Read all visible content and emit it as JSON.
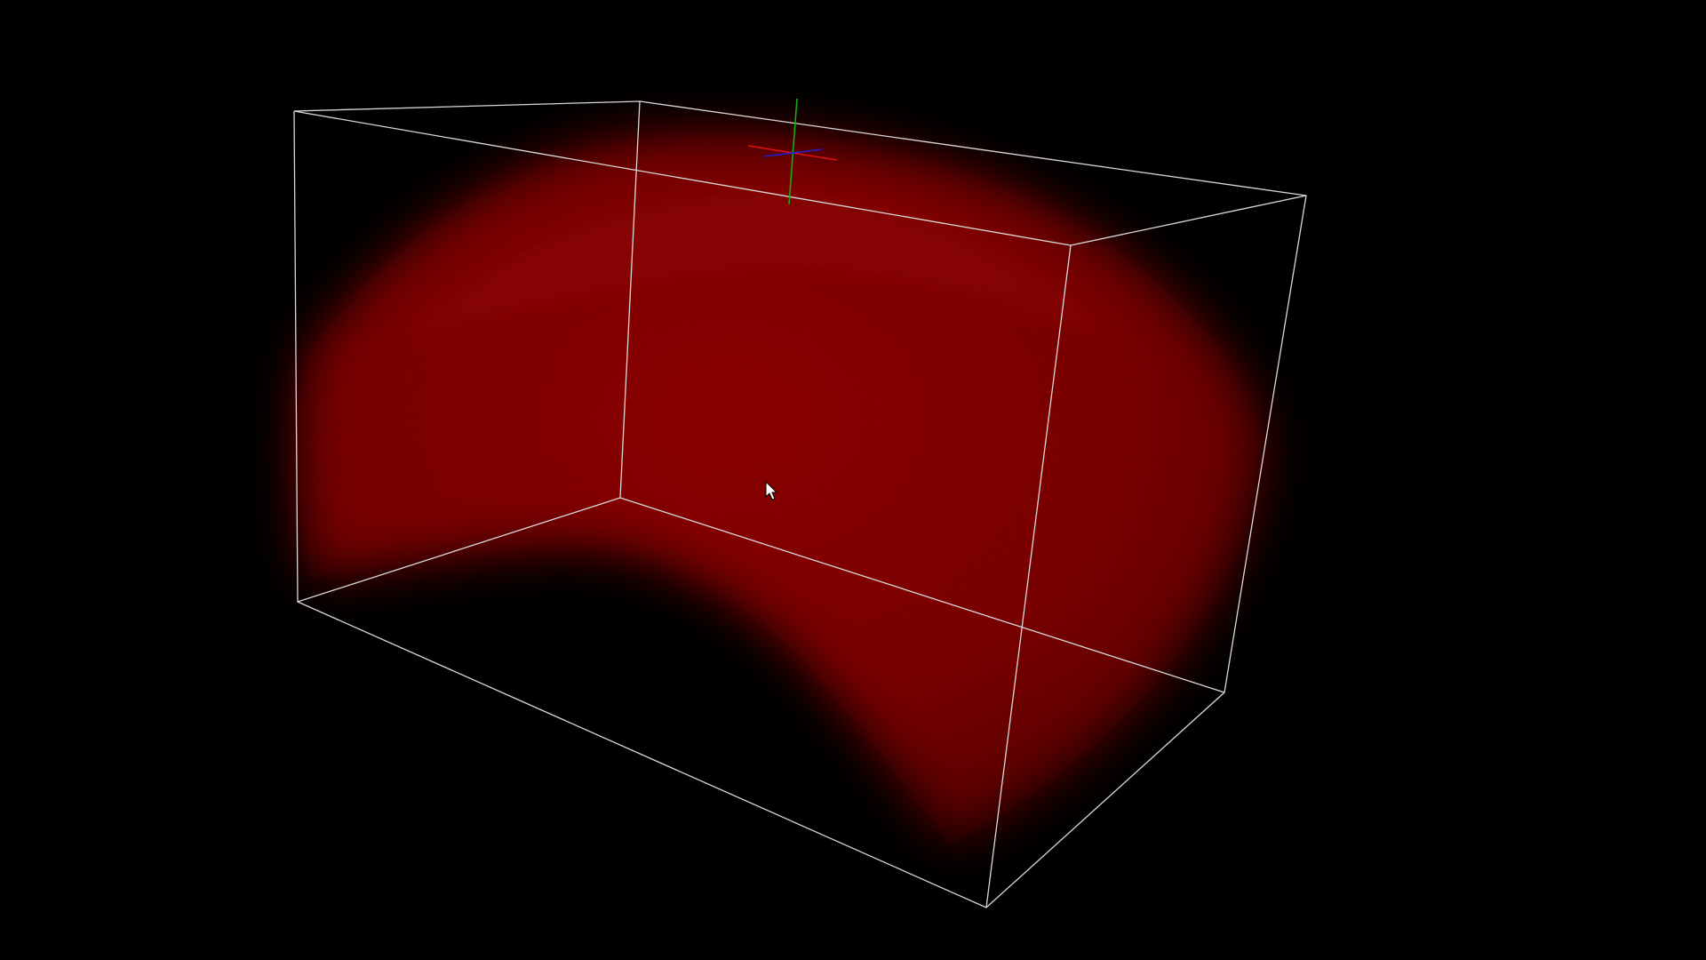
{
  "viewer": {
    "background_color": "#000000",
    "volume_color": "#8b0000",
    "bounding_box_color": "#d9d9d9",
    "axes": {
      "x_color": "#e01010",
      "y_color": "#10b010",
      "z_color": "#2020d0"
    },
    "cursor_icon": "arrow-cursor-icon"
  }
}
